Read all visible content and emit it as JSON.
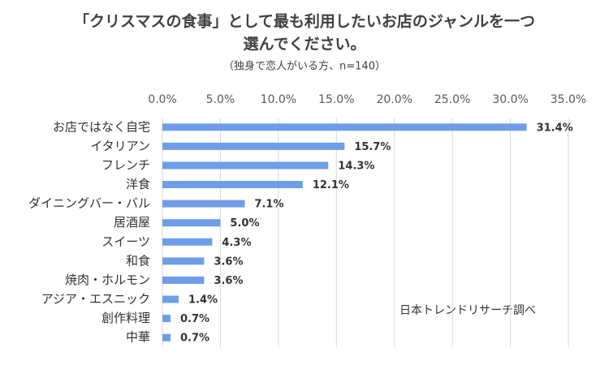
{
  "chart_data": {
    "type": "bar",
    "orientation": "horizontal",
    "title_lines": [
      "「クリスマスの食事」として最も利用したいお店のジャンルを一つ",
      "選んでください。"
    ],
    "subtitle": "（独身で恋人がいる方、n=140）",
    "categories": [
      "お店ではなく自宅",
      "イタリアン",
      "フレンチ",
      "洋食",
      "ダイニングバー・バル",
      "居酒屋",
      "スイーツ",
      "和食",
      "焼肉・ホルモン",
      "アジア・エスニック",
      "創作料理",
      "中華"
    ],
    "values": [
      31.4,
      15.7,
      14.3,
      12.1,
      7.1,
      5.0,
      4.3,
      3.6,
      3.6,
      1.4,
      0.7,
      0.7
    ],
    "value_labels": [
      "31.4%",
      "15.7%",
      "14.3%",
      "12.1%",
      "7.1%",
      "5.0%",
      "4.3%",
      "3.6%",
      "3.6%",
      "1.4%",
      "0.7%",
      "0.7%"
    ],
    "color": "#6f9ee8",
    "xlim": [
      0,
      35
    ],
    "xticks": [
      {
        "value": 0,
        "label": "0.0%"
      },
      {
        "value": 5,
        "label": "5.0%"
      },
      {
        "value": 10,
        "label": "10.0%"
      },
      {
        "value": 15,
        "label": "15.0%"
      },
      {
        "value": 20,
        "label": "20.0%"
      },
      {
        "value": 25,
        "label": "25.0%"
      },
      {
        "value": 30,
        "label": "30.0%"
      },
      {
        "value": 35,
        "label": "35.0%"
      }
    ],
    "grid": true,
    "annotation": "日本トレンドリサーチ調べ"
  }
}
